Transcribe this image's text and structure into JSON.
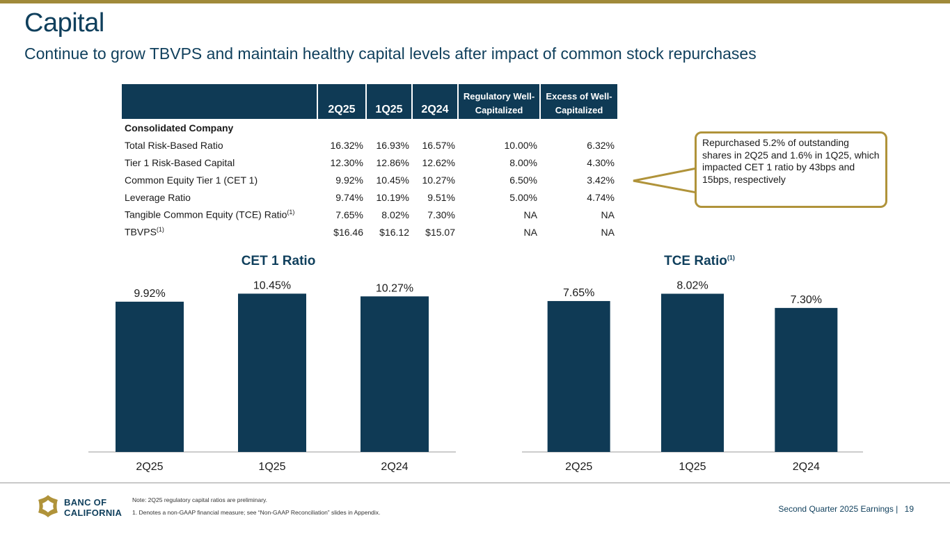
{
  "header": {
    "title": "Capital",
    "subtitle": "Continue to grow TBVPS and maintain healthy capital levels after impact of common stock repurchases"
  },
  "colors": {
    "accent_gold": "#a08a3a",
    "navy": "#0f3a55",
    "callout_border": "#b0933a"
  },
  "table": {
    "columns": [
      "2Q25",
      "1Q25",
      "2Q24",
      "Regulatory Well-Capitalized",
      "Excess of Well-Capitalized"
    ],
    "section_label": "Consolidated Company",
    "rows": [
      {
        "label": "Total Risk-Based Ratio",
        "sup": "",
        "values": [
          "16.32%",
          "16.93%",
          "16.57%",
          "10.00%",
          "6.32%"
        ]
      },
      {
        "label": "Tier 1 Risk-Based Capital",
        "sup": "",
        "values": [
          "12.30%",
          "12.86%",
          "12.62%",
          "8.00%",
          "4.30%"
        ]
      },
      {
        "label": "Common Equity Tier 1 (CET 1)",
        "sup": "",
        "values": [
          "9.92%",
          "10.45%",
          "10.27%",
          "6.50%",
          "3.42%"
        ]
      },
      {
        "label": "Leverage Ratio",
        "sup": "",
        "values": [
          "9.74%",
          "10.19%",
          "9.51%",
          "5.00%",
          "4.74%"
        ]
      },
      {
        "label": "Tangible Common Equity (TCE) Ratio",
        "sup": "(1)",
        "values": [
          "7.65%",
          "8.02%",
          "7.30%",
          "NA",
          "NA"
        ]
      },
      {
        "label": "TBVPS",
        "sup": "(1)",
        "values": [
          "$16.46",
          "$16.12",
          "$15.07",
          "NA",
          "NA"
        ]
      }
    ]
  },
  "callout": {
    "text": "Repurchased 5.2% of outstanding shares in 2Q25 and 1.6% in 1Q25, which impacted CET 1 ratio by 43bps and 15bps, respectively"
  },
  "chart_data": [
    {
      "type": "bar",
      "title": "CET 1 Ratio",
      "title_sup": "",
      "categories": [
        "2Q25",
        "1Q25",
        "2Q24"
      ],
      "values": [
        9.92,
        10.45,
        10.27
      ],
      "labels": [
        "9.92%",
        "10.45%",
        "10.27%"
      ],
      "ylim": [
        0,
        11.2
      ],
      "xlabel": "",
      "ylabel": ""
    },
    {
      "type": "bar",
      "title": "TCE Ratio",
      "title_sup": "(1)",
      "categories": [
        "2Q25",
        "1Q25",
        "2Q24"
      ],
      "values": [
        7.65,
        8.02,
        7.3
      ],
      "labels": [
        "7.65%",
        "8.02%",
        "7.30%"
      ],
      "ylim": [
        0,
        8.6
      ],
      "xlabel": "",
      "ylabel": ""
    }
  ],
  "footer": {
    "logo_line1": "BANC OF",
    "logo_line2": "CALIFORNIA",
    "note": "Note: 2Q25 regulatory capital ratios are preliminary.",
    "footnote": "1.  Denotes a non-GAAP financial measure; see “Non-GAAP Reconciliation” slides in Appendix.",
    "page_label": "Second Quarter 2025 Earnings |",
    "page_number": "19"
  }
}
